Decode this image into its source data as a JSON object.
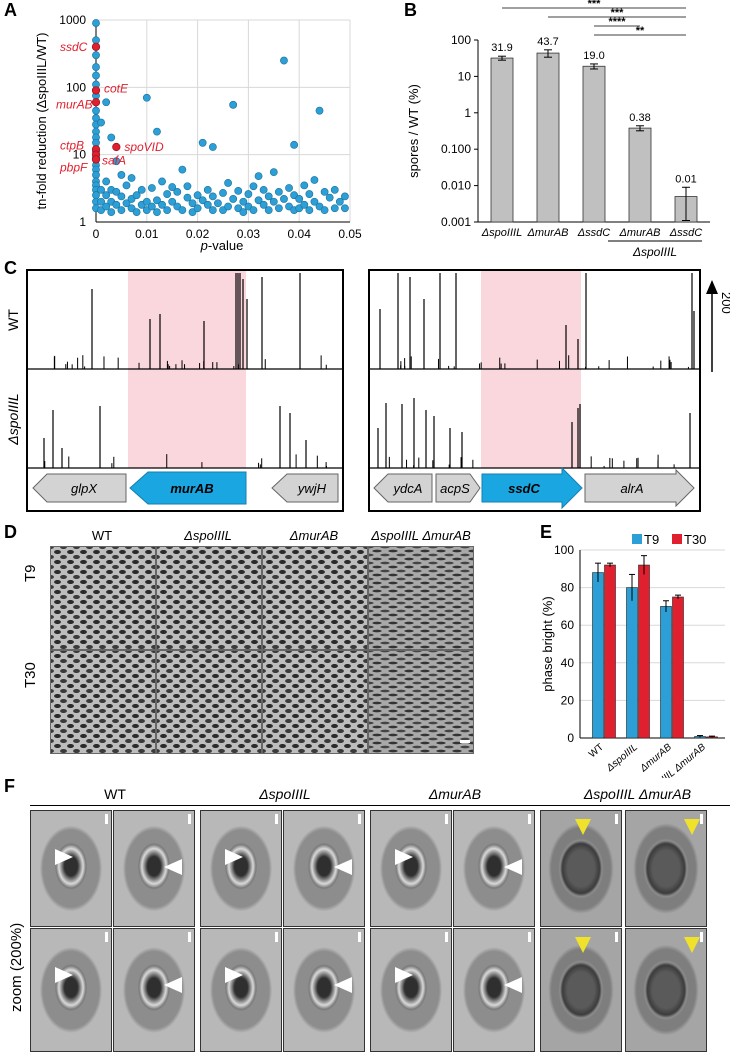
{
  "figure": {
    "panels": [
      "A",
      "B",
      "C",
      "D",
      "E",
      "F"
    ]
  },
  "panel_a": {
    "xlabel_italic": "p",
    "xlabel_rest": "-value",
    "ylabel": "tn-fold reduction (ΔspoIIIL/WT)",
    "x_ticks": [
      "0",
      "0.01",
      "0.02",
      "0.03",
      "0.04",
      "0.05"
    ],
    "y_ticks": [
      "1",
      "10",
      "100",
      "1000"
    ],
    "highlight_color": "#e0202e",
    "point_color": "#2b9fd6",
    "gene_labels": [
      "ssdC",
      "cotE",
      "murAB",
      "spoVID",
      "ctpB",
      "safA",
      "pbpF"
    ]
  },
  "panel_b": {
    "ylabel": "spores / WT (%)",
    "y_ticks": [
      "100",
      "10",
      "1",
      "0.100",
      "0.010",
      "0.001"
    ],
    "groups_label": "ΔspoIIIL",
    "significance": [
      "***",
      "***",
      "****",
      "**"
    ]
  },
  "panel_c": {
    "row_labels": [
      "WT",
      "ΔspoIIIL"
    ],
    "scale_label": "200",
    "left_genes": [
      "glpX",
      "murAB",
      "ywjH"
    ],
    "right_genes": [
      "ydcA",
      "acpS",
      "ssdC",
      "alrA"
    ],
    "highlight_color": "#f9d7dc",
    "target_color": "#1aa6e0"
  },
  "panel_d": {
    "columns": [
      "WT",
      "ΔspoIIIL",
      "ΔmurAB",
      "ΔspoIIIL ΔmurAB"
    ],
    "rows": [
      "T9",
      "T30"
    ]
  },
  "panel_e": {
    "ylabel": "phase bright (%)",
    "y_ticks": [
      "100",
      "80",
      "60",
      "40",
      "20",
      "0"
    ],
    "legend": [
      "T9",
      "T30"
    ],
    "colors": {
      "T9": "#2b9fd6",
      "T30": "#e0202e"
    }
  },
  "panel_f": {
    "columns": [
      "WT",
      "ΔspoIIIL",
      "ΔmurAB",
      "ΔspoIIIL ΔmurAB"
    ],
    "row2_label": "zoom (200%)"
  },
  "chart_data": [
    {
      "type": "scatter",
      "title": "",
      "xlabel": "p-value",
      "ylabel": "tn-fold reduction (ΔspoIIIL/WT)",
      "xlim": [
        0,
        0.05
      ],
      "ylim": [
        1,
        1000
      ],
      "y_scale": "log",
      "highlighted": [
        {
          "name": "ssdC",
          "x": 0.0,
          "y": 400
        },
        {
          "name": "cotE",
          "x": 0.0,
          "y": 90
        },
        {
          "name": "murAB",
          "x": 0.0,
          "y": 60
        },
        {
          "name": "spoVID",
          "x": 0.004,
          "y": 13
        },
        {
          "name": "ctpB",
          "x": 0.0,
          "y": 12
        },
        {
          "name": "safA",
          "x": 0.0,
          "y": 10
        },
        {
          "name": "pbpF",
          "x": 0.0,
          "y": 8.5
        }
      ],
      "points": [
        [
          0.0,
          900
        ],
        [
          0.0,
          500
        ],
        [
          0.0,
          300
        ],
        [
          0.0,
          200
        ],
        [
          0.0,
          150
        ],
        [
          0.0,
          110
        ],
        [
          0.0,
          75
        ],
        [
          0.0,
          45
        ],
        [
          0.0,
          35
        ],
        [
          0.0,
          28
        ],
        [
          0.0,
          22
        ],
        [
          0.0,
          18
        ],
        [
          0.0,
          15
        ],
        [
          0.0,
          11
        ],
        [
          0.0,
          9
        ],
        [
          0.0,
          7
        ],
        [
          0.0,
          6
        ],
        [
          0.0,
          5
        ],
        [
          0.0,
          4
        ],
        [
          0.0,
          3.5
        ],
        [
          0.0,
          3
        ],
        [
          0.0,
          2.5
        ],
        [
          0.0,
          2
        ],
        [
          0.0,
          1.6
        ],
        [
          0.001,
          30
        ],
        [
          0.001,
          3
        ],
        [
          0.001,
          2
        ],
        [
          0.001,
          1.5
        ],
        [
          0.002,
          60
        ],
        [
          0.002,
          4
        ],
        [
          0.002,
          2.5
        ],
        [
          0.002,
          1.7
        ],
        [
          0.003,
          18
        ],
        [
          0.003,
          3
        ],
        [
          0.003,
          2
        ],
        [
          0.003,
          1.4
        ],
        [
          0.004,
          8
        ],
        [
          0.004,
          2.8
        ],
        [
          0.004,
          1.8
        ],
        [
          0.005,
          5
        ],
        [
          0.005,
          2.4
        ],
        [
          0.005,
          1.5
        ],
        [
          0.006,
          3.5
        ],
        [
          0.006,
          1.9
        ],
        [
          0.007,
          4.5
        ],
        [
          0.007,
          2.2
        ],
        [
          0.007,
          1.6
        ],
        [
          0.008,
          2.5
        ],
        [
          0.008,
          1.4
        ],
        [
          0.009,
          3
        ],
        [
          0.009,
          1.8
        ],
        [
          0.01,
          70
        ],
        [
          0.01,
          2
        ],
        [
          0.01,
          1.5
        ],
        [
          0.011,
          3.2
        ],
        [
          0.011,
          1.7
        ],
        [
          0.012,
          22
        ],
        [
          0.012,
          2.1
        ],
        [
          0.012,
          1.4
        ],
        [
          0.013,
          4
        ],
        [
          0.013,
          1.8
        ],
        [
          0.014,
          2.6
        ],
        [
          0.014,
          1.5
        ],
        [
          0.015,
          3.3
        ],
        [
          0.015,
          2
        ],
        [
          0.016,
          1.7
        ],
        [
          0.016,
          2.8
        ],
        [
          0.017,
          6
        ],
        [
          0.017,
          1.5
        ],
        [
          0.018,
          2.3
        ],
        [
          0.018,
          3.4
        ],
        [
          0.019,
          1.9
        ],
        [
          0.019,
          1.4
        ],
        [
          0.02,
          2.5
        ],
        [
          0.02,
          1.6
        ],
        [
          0.021,
          15
        ],
        [
          0.021,
          2.1
        ],
        [
          0.022,
          3
        ],
        [
          0.022,
          1.8
        ],
        [
          0.023,
          13
        ],
        [
          0.023,
          2.4
        ],
        [
          0.023,
          1.5
        ],
        [
          0.024,
          1.9
        ],
        [
          0.025,
          2.7
        ],
        [
          0.025,
          1.5
        ],
        [
          0.026,
          3.8
        ],
        [
          0.026,
          1.7
        ],
        [
          0.027,
          55
        ],
        [
          0.027,
          2.2
        ],
        [
          0.028,
          1.6
        ],
        [
          0.028,
          2.9
        ],
        [
          0.029,
          2
        ],
        [
          0.029,
          1.4
        ],
        [
          0.03,
          2.6
        ],
        [
          0.03,
          1.7
        ],
        [
          0.031,
          3.4
        ],
        [
          0.031,
          1.5
        ],
        [
          0.032,
          4.8
        ],
        [
          0.032,
          2.1
        ],
        [
          0.033,
          1.8
        ],
        [
          0.033,
          3
        ],
        [
          0.034,
          2.4
        ],
        [
          0.034,
          1.5
        ],
        [
          0.035,
          5.5
        ],
        [
          0.035,
          2
        ],
        [
          0.036,
          1.6
        ],
        [
          0.036,
          2.8
        ],
        [
          0.037,
          250
        ],
        [
          0.037,
          2.2
        ],
        [
          0.038,
          1.7
        ],
        [
          0.038,
          3.2
        ],
        [
          0.039,
          2.5
        ],
        [
          0.039,
          14
        ],
        [
          0.039,
          1.5
        ],
        [
          0.04,
          2.2
        ],
        [
          0.04,
          1.6
        ],
        [
          0.041,
          3.5
        ],
        [
          0.041,
          1.8
        ],
        [
          0.042,
          2.6
        ],
        [
          0.042,
          1.5
        ],
        [
          0.043,
          4.2
        ],
        [
          0.043,
          2
        ],
        [
          0.044,
          45
        ],
        [
          0.044,
          1.7
        ],
        [
          0.045,
          2.8
        ],
        [
          0.045,
          1.5
        ],
        [
          0.046,
          2.3
        ],
        [
          0.047,
          1.6
        ],
        [
          0.047,
          3
        ],
        [
          0.048,
          2
        ],
        [
          0.049,
          1.6
        ],
        [
          0.049,
          2.4
        ]
      ]
    },
    {
      "type": "bar",
      "title": "",
      "xlabel": "",
      "ylabel": "spores / WT (%)",
      "y_scale": "log",
      "ylim": [
        0.001,
        100
      ],
      "categories": [
        "ΔspoIIIL",
        "ΔmurAB",
        "ΔssdC",
        "ΔspoIIIL ΔmurAB",
        "ΔspoIIIL ΔssdC"
      ],
      "tick_labels": [
        "ΔspoIIIL",
        "ΔmurAB",
        "ΔssdC",
        "ΔmurAB",
        "ΔssdC"
      ],
      "values": [
        31.9,
        43.7,
        19.0,
        0.38,
        0.005
      ],
      "value_labels": [
        "31.9",
        "43.7",
        "19.0",
        "0.38",
        "0.01"
      ],
      "errors": [
        4,
        10,
        3,
        0.06,
        0.004
      ],
      "bar_color": "#c0c0c0"
    },
    {
      "type": "bar",
      "title": "",
      "xlabel": "",
      "ylabel": "phase bright (%)",
      "ylim": [
        0,
        100
      ],
      "categories": [
        "WT",
        "ΔspoIIIL",
        "ΔmurAB",
        "ΔspoIIIL ΔmurAB"
      ],
      "series": [
        {
          "name": "T9",
          "values": [
            88,
            80,
            70,
            0.8
          ],
          "errors": [
            5,
            7,
            3,
            0.5
          ]
        },
        {
          "name": "T30",
          "values": [
            92,
            92,
            75,
            0.6
          ],
          "errors": [
            1,
            5,
            1,
            0.4
          ]
        }
      ],
      "legend": "top-right"
    }
  ]
}
